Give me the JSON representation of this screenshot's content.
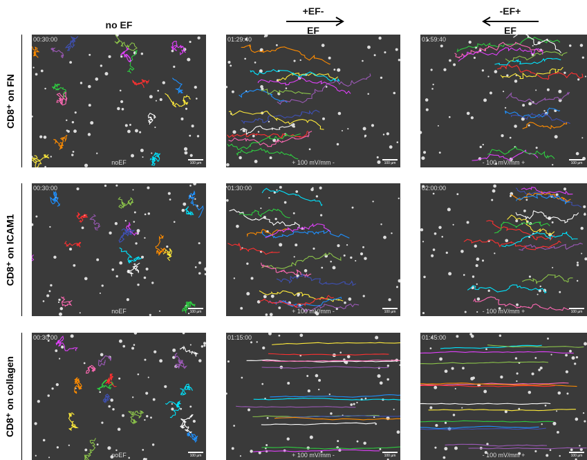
{
  "columns": [
    {
      "title": "no EF"
    },
    {
      "title": "+EF-",
      "subtitle": "EF"
    },
    {
      "title": "-EF+",
      "subtitle": "EF"
    }
  ],
  "rows": [
    {
      "label": "CD8⁺ on FN",
      "panels": [
        {
          "time": "00:30:00",
          "caption": "noEF",
          "scale": "100 µm"
        },
        {
          "time": "01:29:40",
          "caption": "+ 100 mV/mm -",
          "scale": "100 µm"
        },
        {
          "time": "01:59:40",
          "caption": "- 100 mV/mm +",
          "scale": "100 µm"
        }
      ]
    },
    {
      "label": "CD8⁺ on ICAM1",
      "panels": [
        {
          "time": "00:30:00",
          "caption": "noEF",
          "scale": "100 µm"
        },
        {
          "time": "01:30:00",
          "caption": "+ 100 mV/mm -",
          "scale": "100 µm"
        },
        {
          "time": "02:00:00",
          "caption": "- 100 mV/mm +",
          "scale": "100 µm"
        }
      ]
    },
    {
      "label": "CD8⁺ on collagen",
      "panels": [
        {
          "time": "00:30:00",
          "caption": "noEF",
          "scale": "100 µm"
        },
        {
          "time": "01:15:00",
          "caption": "+ 100 mV/mm -",
          "scale": "100 µm"
        },
        {
          "time": "01:45:00",
          "caption": "- 100 mV/mm +",
          "scale": "100 µm"
        }
      ]
    }
  ]
}
